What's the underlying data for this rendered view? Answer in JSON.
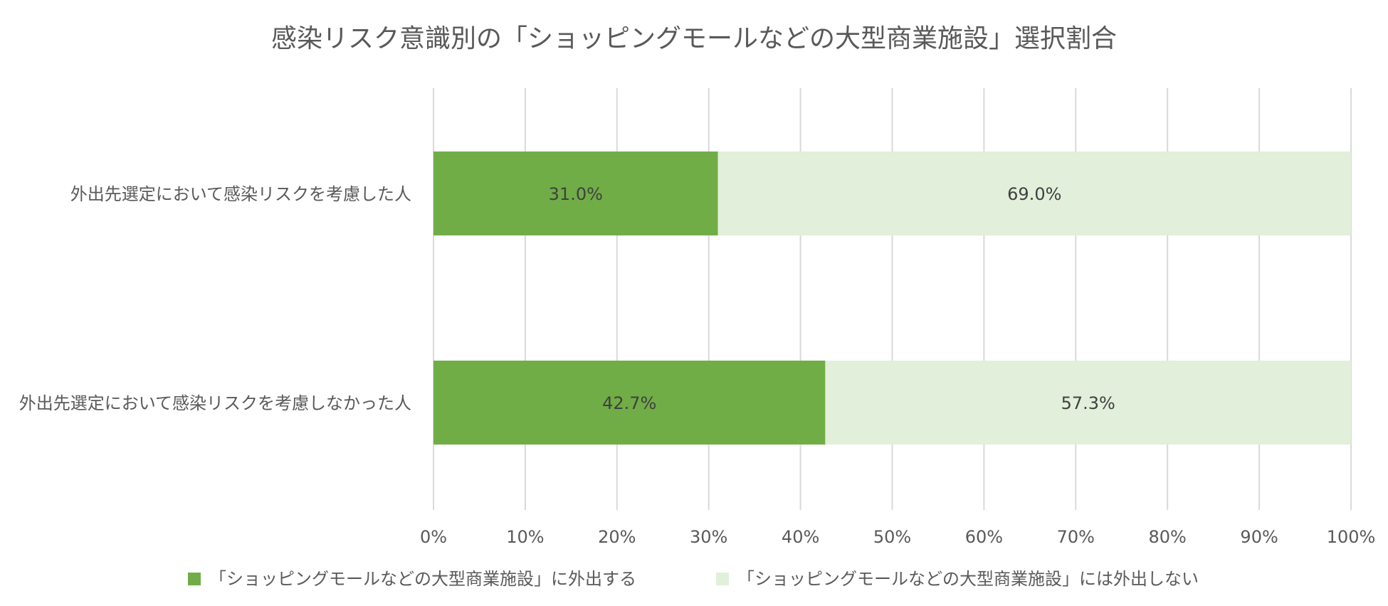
{
  "chart_data": {
    "type": "bar",
    "orientation": "horizontal",
    "stacked": "percent",
    "title": "感染リスク意識別の「ショッピングモールなどの大型商業施設」選択割合",
    "categories": [
      "外出先選定において感染リスクを考慮した人",
      "外出先選定において感染リスクを考慮しなかった人"
    ],
    "series": [
      {
        "name": "「ショッピングモールなどの大型商業施設」に外出する",
        "color": "#70ad47",
        "values": [
          31.0,
          42.7
        ],
        "labels": [
          "31.0%",
          "42.7%"
        ]
      },
      {
        "name": "「ショッピングモールなどの大型商業施設」には外出しない",
        "color": "#e2efda",
        "values": [
          69.0,
          57.3
        ],
        "labels": [
          "69.0%",
          "57.3%"
        ]
      }
    ],
    "xlim": [
      0,
      100
    ],
    "xticks": [
      "0%",
      "10%",
      "20%",
      "30%",
      "40%",
      "50%",
      "60%",
      "70%",
      "80%",
      "90%",
      "100%"
    ],
    "grid": true,
    "legend_position": "bottom"
  }
}
